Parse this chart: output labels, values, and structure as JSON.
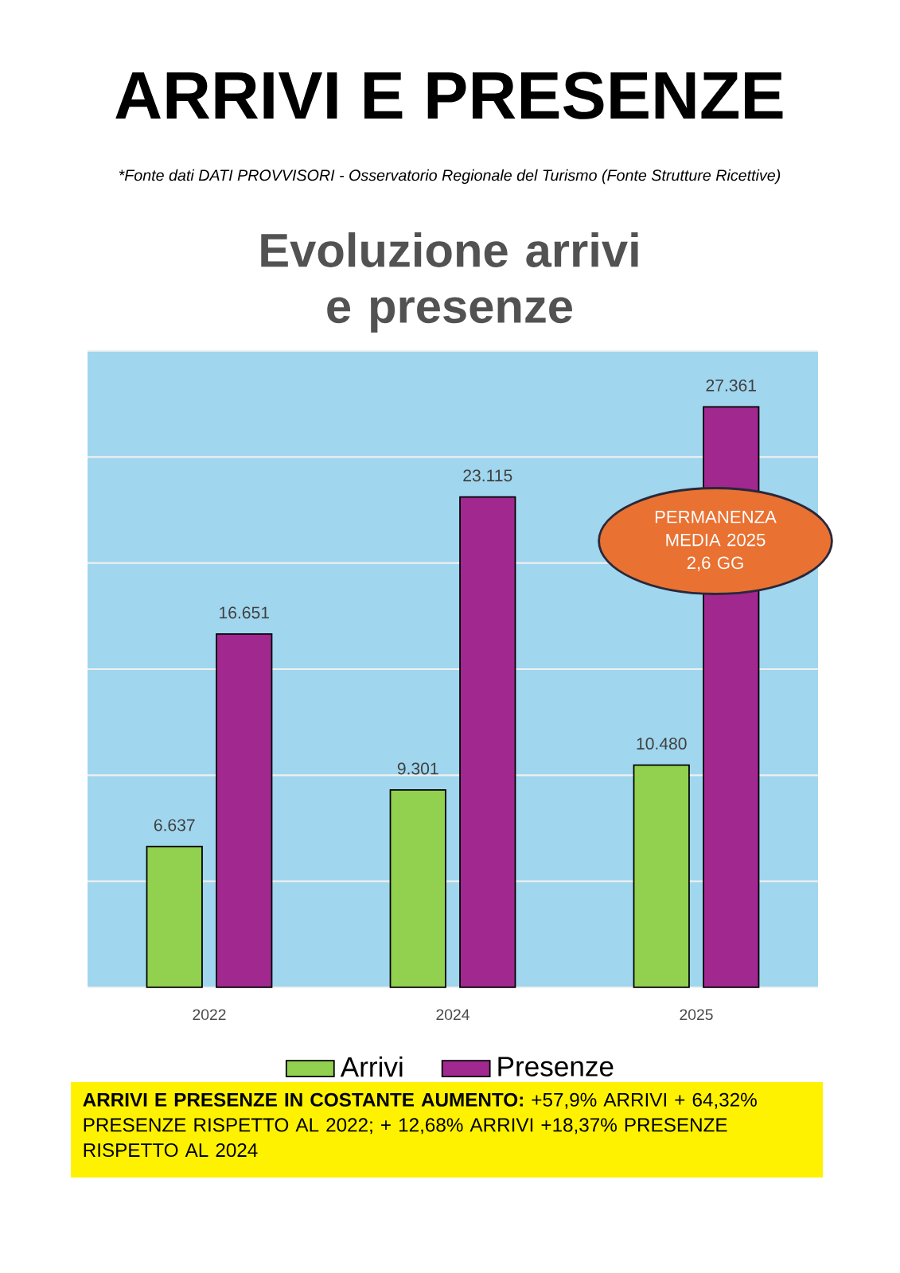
{
  "chart_data": {
    "type": "bar",
    "title": "ARRIVI E PRESENZE",
    "subtitle": "Evoluzione arrivi e presenze",
    "categories": [
      "2022",
      "2024",
      "2025"
    ],
    "series": [
      {
        "name": "Arrivi",
        "color": "#92d050",
        "values": [
          6637,
          9301,
          10480
        ],
        "value_labels": [
          "6.637",
          "9.301",
          "10.480"
        ]
      },
      {
        "name": "Presenze",
        "color": "#a0288f",
        "values": [
          16651,
          23115,
          27361
        ],
        "value_labels": [
          "16.651",
          "23.115",
          "27.361"
        ]
      }
    ],
    "ylim": [
      0,
      30000
    ],
    "yticks": [
      {
        "value": 0,
        "label": null
      },
      {
        "value": 5000,
        "label": null
      },
      {
        "value": 10000,
        "label": null
      },
      {
        "value": 15000,
        "label": null
      },
      {
        "value": 20000,
        "label": null
      },
      {
        "value": 25000,
        "label": null
      },
      {
        "value": 30000,
        "label": null
      }
    ],
    "grid": "y",
    "tick_labels": "x",
    "legend": "bottom",
    "annotations": [
      "*Fonte dati DATI PROVVISORI -  Osservatorio Regionale del Turismo (Fonte Strutture Ricettive)",
      "PERMANENZA MEDIA 2025 2,6 GG",
      "**ARRIVI E PRESENZE IN COSTANTE AUMENTO:** +57,9% ARRIVI + 64,32% PRESENZE RISPETTO AL 2022;   + 12,68% ARRIVI +18,37% PRESENZE RISPETTO AL 2024"
    ]
  }
}
